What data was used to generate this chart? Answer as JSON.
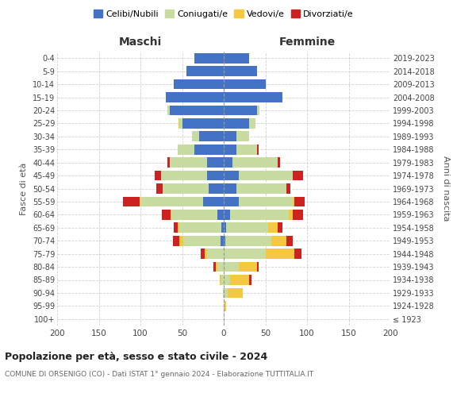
{
  "age_groups": [
    "100+",
    "95-99",
    "90-94",
    "85-89",
    "80-84",
    "75-79",
    "70-74",
    "65-69",
    "60-64",
    "55-59",
    "50-54",
    "45-49",
    "40-44",
    "35-39",
    "30-34",
    "25-29",
    "20-24",
    "15-19",
    "10-14",
    "5-9",
    "0-4"
  ],
  "birth_years": [
    "≤ 1923",
    "1924-1928",
    "1929-1933",
    "1934-1938",
    "1939-1943",
    "1944-1948",
    "1949-1953",
    "1954-1958",
    "1959-1963",
    "1964-1968",
    "1969-1973",
    "1974-1978",
    "1979-1983",
    "1984-1988",
    "1989-1993",
    "1994-1998",
    "1999-2003",
    "2004-2008",
    "2009-2013",
    "2014-2018",
    "2019-2023"
  ],
  "maschi": {
    "celibi": [
      0,
      0,
      0,
      0,
      0,
      0,
      4,
      3,
      8,
      25,
      18,
      20,
      20,
      35,
      30,
      50,
      65,
      70,
      60,
      45,
      35
    ],
    "coniugati": [
      0,
      0,
      1,
      3,
      8,
      20,
      45,
      50,
      55,
      75,
      55,
      55,
      45,
      20,
      8,
      3,
      3,
      0,
      0,
      0,
      0
    ],
    "vedovi": [
      0,
      0,
      0,
      2,
      2,
      3,
      4,
      2,
      1,
      1,
      0,
      0,
      0,
      0,
      0,
      1,
      0,
      0,
      0,
      0,
      0
    ],
    "divorziati": [
      0,
      0,
      0,
      0,
      2,
      5,
      8,
      5,
      10,
      20,
      8,
      8,
      3,
      0,
      0,
      0,
      0,
      0,
      0,
      0,
      0
    ]
  },
  "femmine": {
    "nubili": [
      0,
      0,
      0,
      0,
      0,
      0,
      2,
      3,
      8,
      18,
      15,
      18,
      10,
      15,
      15,
      30,
      40,
      70,
      50,
      40,
      30
    ],
    "coniugate": [
      0,
      1,
      5,
      8,
      18,
      50,
      55,
      50,
      70,
      65,
      60,
      65,
      55,
      25,
      15,
      8,
      3,
      0,
      0,
      0,
      0
    ],
    "vedove": [
      0,
      2,
      18,
      22,
      22,
      35,
      18,
      12,
      5,
      2,
      0,
      0,
      0,
      0,
      0,
      0,
      0,
      0,
      0,
      0,
      0
    ],
    "divorziate": [
      0,
      0,
      0,
      3,
      2,
      8,
      8,
      5,
      12,
      12,
      5,
      12,
      3,
      2,
      0,
      0,
      0,
      0,
      0,
      0,
      0
    ]
  },
  "colors": {
    "celibi_nubili": "#4472c4",
    "coniugati": "#c8dba0",
    "vedovi": "#f5c842",
    "divorziati": "#cc2222"
  },
  "title": "Popolazione per età, sesso e stato civile - 2024",
  "subtitle": "COMUNE DI ORSENIGO (CO) - Dati ISTAT 1° gennaio 2024 - Elaborazione TUTTITALIA.IT",
  "xlabel_left": "Maschi",
  "xlabel_right": "Femmine",
  "ylabel_left": "Fasce di età",
  "ylabel_right": "Anni di nascita",
  "xlim": 200,
  "legend_labels": [
    "Celibi/Nubili",
    "Coniugati/e",
    "Vedovi/e",
    "Divorziati/e"
  ],
  "background_color": "#ffffff",
  "grid_color": "#cccccc"
}
